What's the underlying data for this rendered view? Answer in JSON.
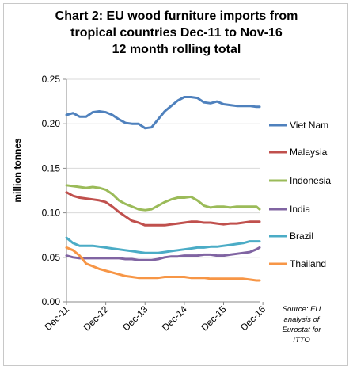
{
  "chart_data": {
    "type": "line",
    "title": [
      "Chart 2: EU wood furniture imports from",
      "tropical countries Dec-11 to Nov-16",
      "12 month rolling total"
    ],
    "xlabel": "",
    "ylabel": "million tonnes",
    "ylim": [
      0,
      0.25
    ],
    "yticks": [
      "0.00",
      "0.05",
      "0.10",
      "0.15",
      "0.20",
      "0.25"
    ],
    "xticks": [
      "Dec-11",
      "Dec-12",
      "Dec-13",
      "Dec-14",
      "Dec-15",
      "Dec-16"
    ],
    "x_knots": [
      0,
      2,
      4,
      6,
      8,
      10,
      12,
      14,
      16,
      18,
      20,
      22,
      24,
      26,
      28,
      30,
      32,
      34,
      36,
      38,
      40,
      42,
      44,
      46,
      48,
      50,
      52,
      54,
      56,
      58,
      59
    ],
    "grid": true,
    "legend_position": "right",
    "series": [
      {
        "name": "Viet Nam",
        "color": "#4F81BD",
        "values": [
          0.21,
          0.212,
          0.208,
          0.208,
          0.213,
          0.214,
          0.213,
          0.21,
          0.205,
          0.201,
          0.2,
          0.2,
          0.195,
          0.196,
          0.205,
          0.214,
          0.22,
          0.226,
          0.23,
          0.23,
          0.229,
          0.224,
          0.223,
          0.225,
          0.222,
          0.221,
          0.22,
          0.22,
          0.22,
          0.219,
          0.219
        ]
      },
      {
        "name": "Malaysia",
        "color": "#C0504D",
        "values": [
          0.123,
          0.119,
          0.117,
          0.116,
          0.115,
          0.114,
          0.112,
          0.107,
          0.101,
          0.096,
          0.091,
          0.089,
          0.086,
          0.086,
          0.086,
          0.086,
          0.087,
          0.088,
          0.089,
          0.09,
          0.09,
          0.089,
          0.089,
          0.088,
          0.087,
          0.088,
          0.088,
          0.089,
          0.09,
          0.09,
          0.09
        ]
      },
      {
        "name": "Indonesia",
        "color": "#9BBB59",
        "values": [
          0.131,
          0.13,
          0.129,
          0.128,
          0.129,
          0.128,
          0.126,
          0.121,
          0.114,
          0.11,
          0.107,
          0.104,
          0.103,
          0.104,
          0.108,
          0.112,
          0.115,
          0.117,
          0.117,
          0.118,
          0.114,
          0.108,
          0.106,
          0.107,
          0.107,
          0.106,
          0.107,
          0.107,
          0.107,
          0.107,
          0.104
        ]
      },
      {
        "name": "India",
        "color": "#8064A2",
        "values": [
          0.052,
          0.05,
          0.049,
          0.049,
          0.049,
          0.049,
          0.049,
          0.049,
          0.049,
          0.048,
          0.048,
          0.047,
          0.047,
          0.047,
          0.048,
          0.05,
          0.051,
          0.051,
          0.052,
          0.052,
          0.052,
          0.053,
          0.053,
          0.052,
          0.052,
          0.053,
          0.054,
          0.055,
          0.056,
          0.059,
          0.061
        ]
      },
      {
        "name": "Brazil",
        "color": "#4BACC6",
        "values": [
          0.072,
          0.066,
          0.063,
          0.063,
          0.063,
          0.062,
          0.061,
          0.06,
          0.059,
          0.058,
          0.057,
          0.056,
          0.055,
          0.055,
          0.055,
          0.056,
          0.057,
          0.058,
          0.059,
          0.06,
          0.061,
          0.061,
          0.062,
          0.062,
          0.063,
          0.064,
          0.065,
          0.066,
          0.068,
          0.068,
          0.068
        ]
      },
      {
        "name": "Thailand",
        "color": "#F79646",
        "values": [
          0.061,
          0.058,
          0.052,
          0.043,
          0.04,
          0.037,
          0.035,
          0.033,
          0.031,
          0.029,
          0.028,
          0.027,
          0.027,
          0.027,
          0.027,
          0.028,
          0.028,
          0.028,
          0.028,
          0.027,
          0.027,
          0.027,
          0.026,
          0.026,
          0.026,
          0.026,
          0.026,
          0.026,
          0.025,
          0.024,
          0.024
        ]
      }
    ],
    "source_note": [
      "Source: EU",
      "analysis of",
      "Eurostat for",
      "ITTO"
    ]
  }
}
